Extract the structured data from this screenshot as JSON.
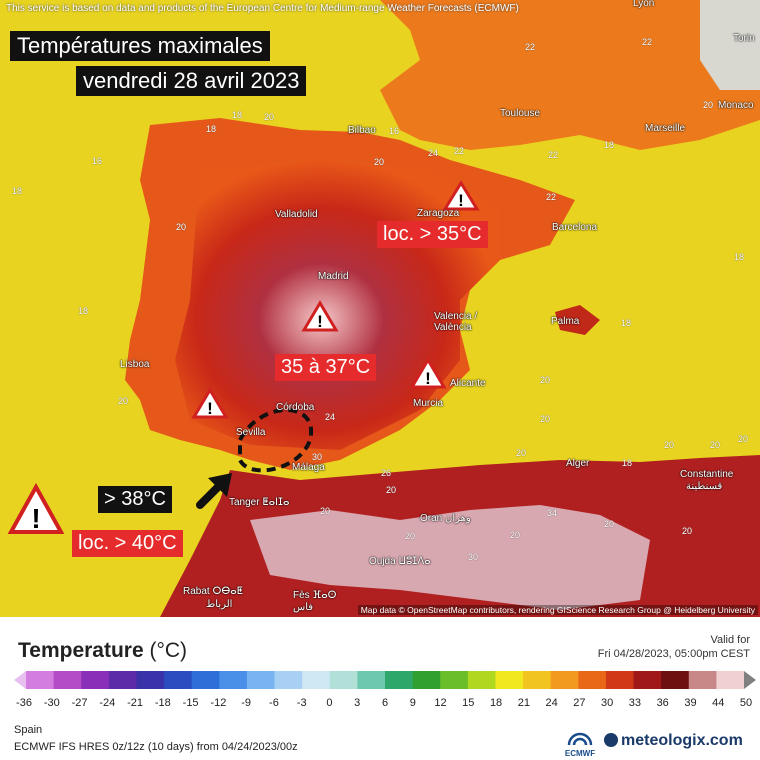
{
  "credits": {
    "top": "This service is based on data and products of the European Centre for Medium-range Weather Forecasts (ECMWF)",
    "map": "Map data © OpenStreetMap contributors, rendering GIScience Research Group @ Heidelberg University"
  },
  "title": {
    "line1": "Températures maximales",
    "line2": "vendredi 28 avril 2023"
  },
  "annotations": {
    "local_35": "loc. > 35°C",
    "range_35_37": "35 à 37°C",
    "over_38": "> 38°C",
    "local_40": "loc. > 40°C"
  },
  "cities": {
    "lyon": "Lyon",
    "torino": "Torin",
    "monaco": "Monaco",
    "toulouse": "Toulouse",
    "marseille": "Marseille",
    "bilbao": "Bilbao",
    "zaragoza": "Zaragoza",
    "valladolid": "Valladolid",
    "barcelona": "Barcelona",
    "madrid": "Madrid",
    "valencia": "Valencia / València",
    "palma": "Palma",
    "lisboa": "Lisboa",
    "alicante": "Alicante",
    "cordoba": "Córdoba",
    "murcia": "Murcia",
    "sevilla": "Sevilla",
    "malaga": "Málaga",
    "alger": "Alger",
    "constantine": "Constantine",
    "constantine_ar": "قسنطينة",
    "tanger": "Tanger ⵟⴰⵏⵊⴰ",
    "oran": "Oran وهران",
    "oujda": "Oujda ⵡⵓⵊⴷⴰ",
    "rabat": "Rabat ⵔⴱⴰⵟ",
    "rabat_ar": "الرباط",
    "fes": "Fès ⴼⴰⵙ",
    "fes_ar": "فاس"
  },
  "map_values": [
    "22",
    "22",
    "20",
    "18",
    "20",
    "18",
    "16",
    "16",
    "18",
    "18",
    "24",
    "22",
    "22",
    "20",
    "22",
    "18",
    "20",
    "18",
    "18",
    "20",
    "20",
    "24",
    "20",
    "30",
    "26",
    "20",
    "18",
    "20",
    "20",
    "20",
    "20",
    "20",
    "34",
    "20",
    "20",
    "20",
    "20",
    "30"
  ],
  "legend": {
    "title": "Temperature",
    "unit": "(°C)",
    "valid_label": "Valid for",
    "valid_value": "Fri 04/28/2023, 05:00pm CEST",
    "ticks": [
      "-36",
      "-30",
      "-27",
      "-24",
      "-21",
      "-18",
      "-15",
      "-12",
      "-9",
      "-6",
      "-3",
      "0",
      "3",
      "6",
      "9",
      "12",
      "15",
      "18",
      "21",
      "24",
      "27",
      "30",
      "33",
      "36",
      "39",
      "44",
      "50"
    ],
    "colors": [
      "#e8c0f0",
      "#d47de0",
      "#b44cc8",
      "#8a2fb8",
      "#5d2aa8",
      "#3a32a8",
      "#2a4cc0",
      "#2e6ed8",
      "#4a90e8",
      "#7ab4f0",
      "#a8d0f4",
      "#d0e8f4",
      "#b0e0d8",
      "#6ec8b0",
      "#2ea86a",
      "#30a030",
      "#6abe2a",
      "#b0d820",
      "#f2e820",
      "#f2c420",
      "#f29a20",
      "#e86818",
      "#d03818",
      "#a01818",
      "#6e1010",
      "#c88888",
      "#f0d0d0",
      "#808080"
    ],
    "region": "Spain",
    "model": "ECMWF IFS HRES 0z/12z (10 days) from  04/24/2023/00z",
    "ecmwf": "ECMWF",
    "brand": "meteologix.com"
  }
}
